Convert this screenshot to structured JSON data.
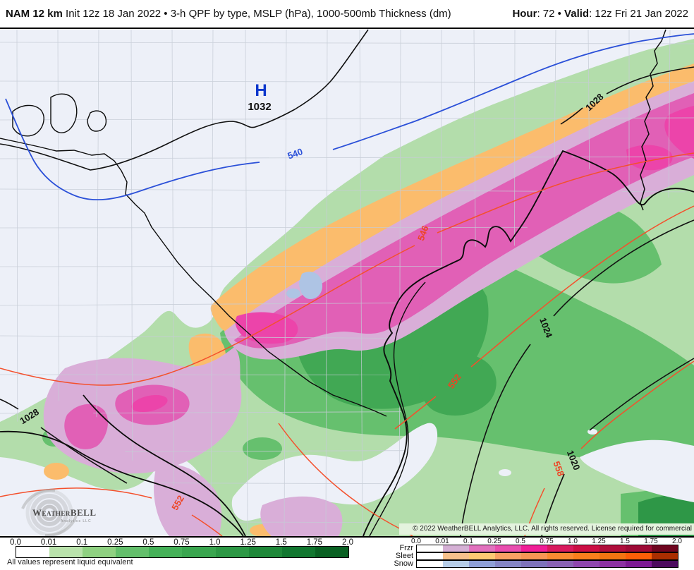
{
  "header": {
    "model": "NAM 12 km",
    "subtitle": " Init 12z 18 Jan 2022 • 3-h QPF by type, MSLP (hPa), 1000-500mb Thickness (dm)",
    "hour_label": "Hour",
    "hour_rest": ": 72 • ",
    "valid_label": "Valid",
    "valid_rest": ": 12z Fri 21 Jan 2022"
  },
  "map": {
    "high": {
      "symbol": "H",
      "value": "1032"
    },
    "labels": [
      {
        "text": "540",
        "kind": "thickness-blue"
      },
      {
        "text": "546",
        "kind": "thickness-red"
      },
      {
        "text": "552",
        "kind": "thickness-red"
      },
      {
        "text": "552",
        "kind": "thickness-red"
      },
      {
        "text": "558",
        "kind": "thickness-red"
      },
      {
        "text": "1028",
        "kind": "isobar"
      },
      {
        "text": "1028",
        "kind": "isobar"
      },
      {
        "text": "1024",
        "kind": "isobar"
      },
      {
        "text": "1020",
        "kind": "isobar"
      }
    ],
    "logo": {
      "name": "WeatherBELL",
      "tagline": "Analytics LLC"
    }
  },
  "copyright": "© 2022 WeatherBELL Analytics, LLC. All rights reserved. License required for commercial distribution.",
  "legend": {
    "ticks": [
      "0.0",
      "0.01",
      "0.1",
      "0.25",
      "0.5",
      "0.75",
      "1.0",
      "1.25",
      "1.5",
      "1.75",
      "2.0"
    ],
    "caption": "All values represent liquid equivalent",
    "rain": {
      "colors": [
        "#ffffff",
        "#b9e2ab",
        "#8fd181",
        "#63bf6b",
        "#45b158",
        "#3aa64f",
        "#2d9845",
        "#1f8839",
        "#127730",
        "#0a6123"
      ]
    },
    "types": [
      {
        "label": "Frzr",
        "colors": [
          "#ffffff",
          "#d5b0d5",
          "#e271be",
          "#e94daf",
          "#f01e97",
          "#d91a5e",
          "#cc0e45",
          "#b00d3c",
          "#9e0a36",
          "#6f051f"
        ]
      },
      {
        "label": "Sleet",
        "colors": [
          "#ffffff",
          "#f7c18c",
          "#fcca73",
          "#f9a263",
          "#f89654",
          "#f98b31",
          "#f97f1c",
          "#f27511",
          "#fa5f07",
          "#aa2e00"
        ]
      },
      {
        "label": "Snow",
        "colors": [
          "#ffffff",
          "#b6cde8",
          "#8f9fd6",
          "#8585c4",
          "#7e72ba",
          "#8a62b4",
          "#8f46ae",
          "#8c30a2",
          "#7c1992",
          "#4c0a5e"
        ]
      }
    ]
  },
  "colors": {
    "background": "#edf0f8",
    "light_green": "#b3ddab",
    "mid_green": "#66c06e",
    "dark_green": "#41a854",
    "orange_sleet": "#fbbc6c",
    "lavender_frzr": "#d9aed8",
    "magenta_frzr": "#e160b6",
    "deep_magenta": "#ec44aa",
    "snow_blue": "#aec4e4",
    "thickness_blue_line": "#2b50d8",
    "thickness_red_line": "#f4502c",
    "isobar_black": "#111111",
    "county_gray": "#c6ccd6",
    "copyright_bg": "#e4f3de"
  }
}
